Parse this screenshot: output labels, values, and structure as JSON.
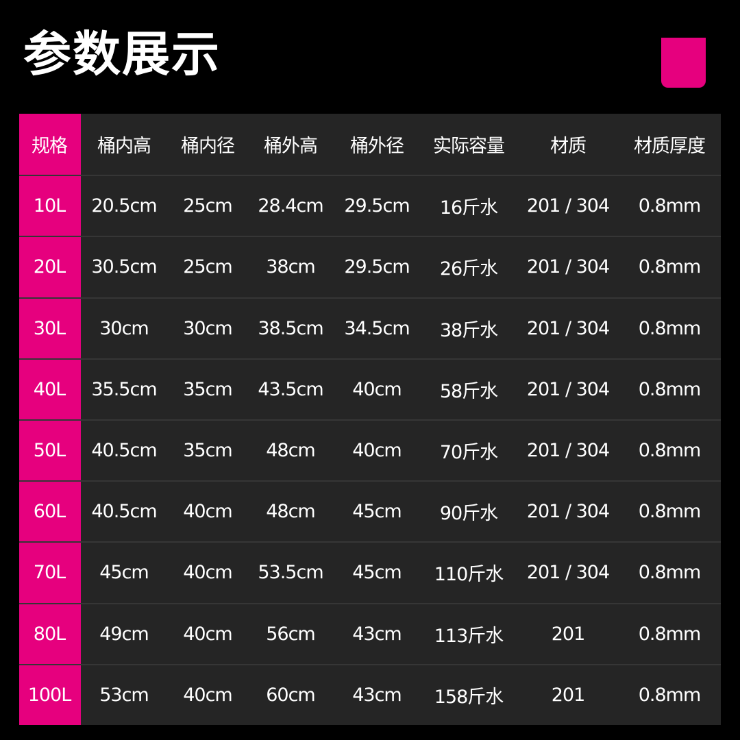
{
  "title": "参数展示",
  "colors": {
    "accent": "#e6007e",
    "table_bg": "#252525",
    "background": "#000000"
  },
  "table": {
    "headers": [
      "规格",
      "桶内高",
      "桶内径",
      "桶外高",
      "桶外径",
      "实际容量",
      "材质",
      "材质厚度"
    ],
    "rows": [
      [
        "10L",
        "20.5cm",
        "25cm",
        "28.4cm",
        "29.5cm",
        "16斤水",
        "201 / 304",
        "0.8mm"
      ],
      [
        "20L",
        "30.5cm",
        "25cm",
        "38cm",
        "29.5cm",
        "26斤水",
        "201 / 304",
        "0.8mm"
      ],
      [
        "30L",
        "30cm",
        "30cm",
        "38.5cm",
        "34.5cm",
        "38斤水",
        "201 / 304",
        "0.8mm"
      ],
      [
        "40L",
        "35.5cm",
        "35cm",
        "43.5cm",
        "40cm",
        "58斤水",
        "201 / 304",
        "0.8mm"
      ],
      [
        "50L",
        "40.5cm",
        "35cm",
        "48cm",
        "40cm",
        "70斤水",
        "201 / 304",
        "0.8mm"
      ],
      [
        "60L",
        "40.5cm",
        "40cm",
        "48cm",
        "45cm",
        "90斤水",
        "201 / 304",
        "0.8mm"
      ],
      [
        "70L",
        "45cm",
        "40cm",
        "53.5cm",
        "45cm",
        "110斤水",
        "201 / 304",
        "0.8mm"
      ],
      [
        "80L",
        "49cm",
        "40cm",
        "56cm",
        "43cm",
        "113斤水",
        "201",
        "0.8mm"
      ],
      [
        "100L",
        "53cm",
        "40cm",
        "60cm",
        "43cm",
        "158斤水",
        "201",
        "0.8mm"
      ]
    ]
  }
}
